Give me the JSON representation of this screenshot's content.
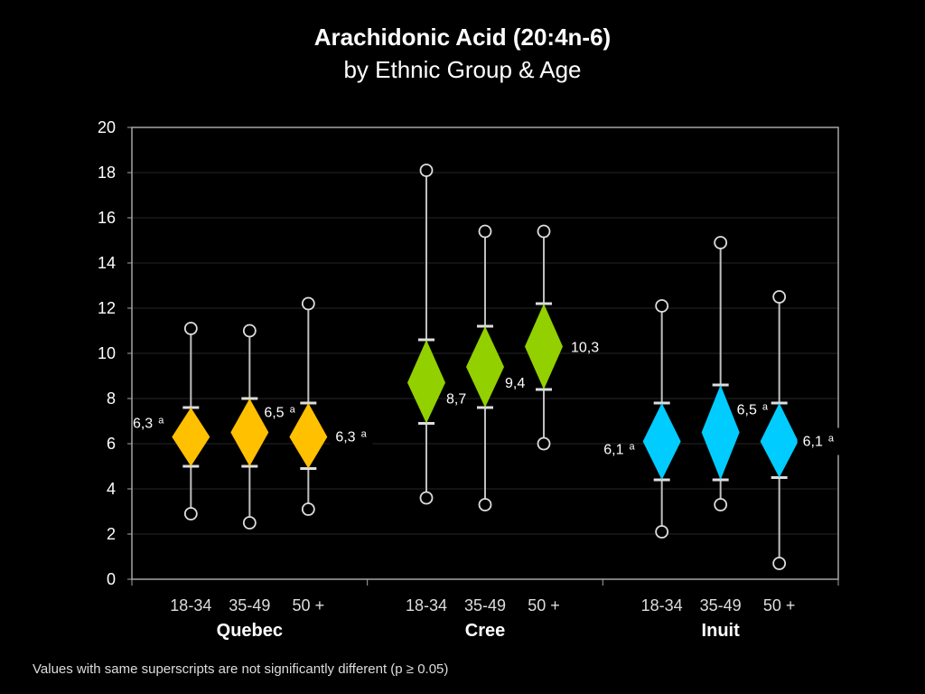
{
  "title": "Arachidonic Acid (20:4n-6)",
  "subtitle": "by Ethnic Group & Age",
  "footnote": "Values with same superscripts are not significantly different (p ≥ 0.05)",
  "colors": {
    "background": "#000000",
    "axis": "#a6a6a6",
    "whisker": "#bfbfbf",
    "Quebec": "#ffc000",
    "Cree": "#92d000",
    "Inuit": "#00ccff"
  },
  "chart_data": {
    "type": "box",
    "ylim": [
      0,
      20
    ],
    "yticks": [
      "0",
      "2",
      "4",
      "6",
      "8",
      "10",
      "12",
      "14",
      "16",
      "18",
      "20"
    ],
    "grid": true,
    "groups": [
      {
        "name": "Quebec",
        "points": [
          {
            "age": "18-34",
            "mean": 6.3,
            "label": "6,3",
            "sup": "a",
            "ci_low": 5.0,
            "ci_high": 7.6,
            "min": 2.9,
            "max": 11.1
          },
          {
            "age": "35-49",
            "mean": 6.5,
            "label": "6,5",
            "sup": "a",
            "ci_low": 5.0,
            "ci_high": 8.0,
            "min": 2.5,
            "max": 11.0
          },
          {
            "age": "50 +",
            "mean": 6.3,
            "label": "6,3",
            "sup": "a",
            "ci_low": 4.9,
            "ci_high": 7.8,
            "min": 3.1,
            "max": 12.2
          }
        ]
      },
      {
        "name": "Cree",
        "points": [
          {
            "age": "18-34",
            "mean": 8.7,
            "label": "8,7",
            "sup": "",
            "ci_low": 6.9,
            "ci_high": 10.6,
            "min": 3.6,
            "max": 18.1
          },
          {
            "age": "35-49",
            "mean": 9.4,
            "label": "9,4",
            "sup": "",
            "ci_low": 7.6,
            "ci_high": 11.2,
            "min": 3.3,
            "max": 15.4
          },
          {
            "age": "50 +",
            "mean": 10.3,
            "label": "10,3",
            "sup": "",
            "ci_low": 8.4,
            "ci_high": 12.2,
            "min": 6.0,
            "max": 15.4
          }
        ]
      },
      {
        "name": "Inuit",
        "points": [
          {
            "age": "18-34",
            "mean": 6.1,
            "label": "6,1",
            "sup": "a",
            "ci_low": 4.4,
            "ci_high": 7.8,
            "min": 2.1,
            "max": 12.1
          },
          {
            "age": "35-49",
            "mean": 6.5,
            "label": "6,5",
            "sup": "a",
            "ci_low": 4.4,
            "ci_high": 8.6,
            "min": 3.3,
            "max": 14.9
          },
          {
            "age": "50 +",
            "mean": 6.1,
            "label": "6,1",
            "sup": "a",
            "ci_low": 4.5,
            "ci_high": 7.8,
            "min": 0.7,
            "max": 12.5
          }
        ]
      }
    ]
  }
}
